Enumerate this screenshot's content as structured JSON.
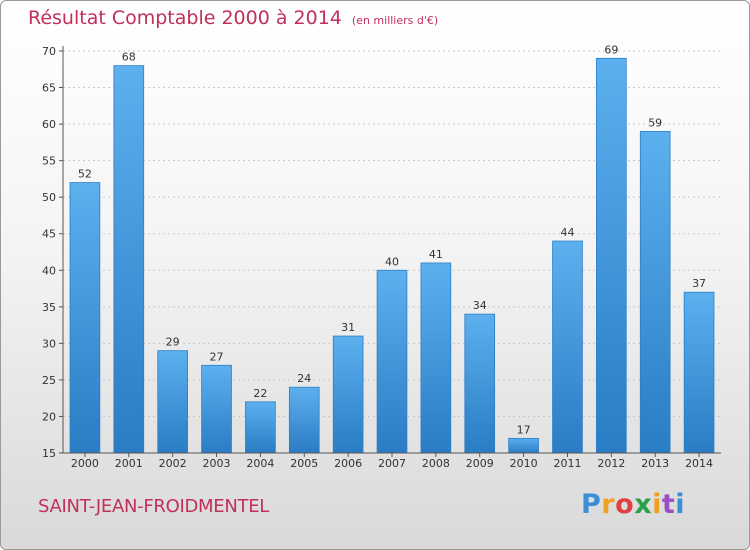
{
  "chart_data": {
    "type": "bar",
    "title": "Résultat Comptable 2000 à 2014",
    "subtitle": "(en milliers d'€)",
    "categories": [
      "2000",
      "2001",
      "2002",
      "2003",
      "2004",
      "2005",
      "2006",
      "2007",
      "2008",
      "2009",
      "2010",
      "2011",
      "2012",
      "2013",
      "2014"
    ],
    "values": [
      52,
      68,
      29,
      27,
      22,
      24,
      31,
      40,
      41,
      34,
      17,
      44,
      69,
      59,
      37
    ],
    "xlabel": "",
    "ylabel": "",
    "ylim": [
      15,
      70
    ],
    "yticks": [
      15,
      20,
      25,
      30,
      35,
      40,
      45,
      50,
      55,
      60,
      65,
      70
    ],
    "grid": true,
    "bar_color": "#3a94db"
  },
  "footer": {
    "city": "SAINT-JEAN-FROIDMENTEL",
    "logo": "Proxiti"
  }
}
